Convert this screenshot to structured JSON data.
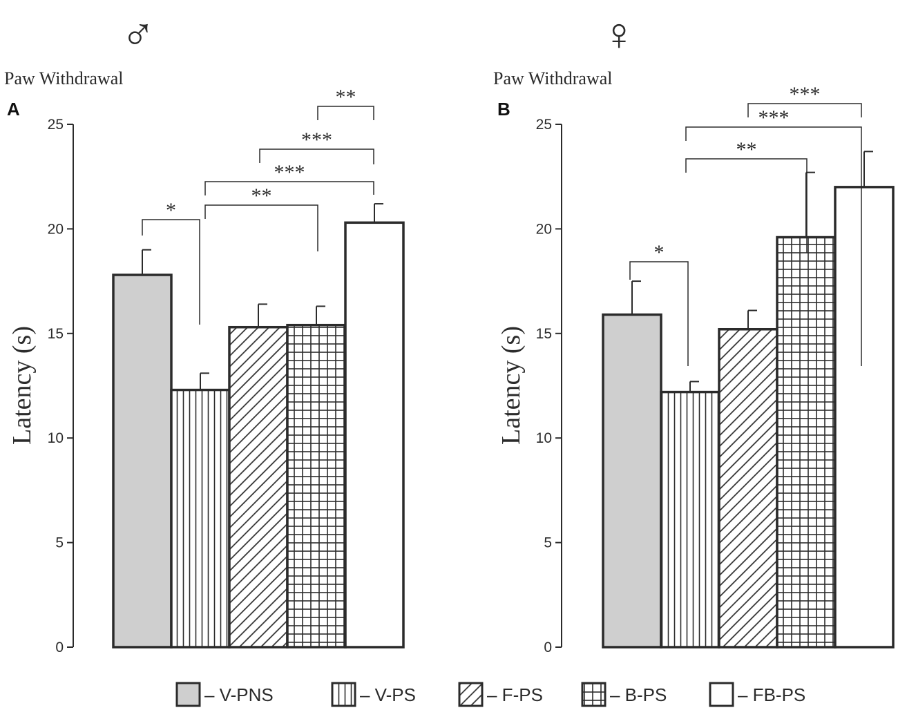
{
  "chart_data": [
    {
      "panel": "A",
      "sex_symbol": "♂",
      "subtitle": "Paw Withdrawal",
      "type": "bar",
      "ylabel": "Latency  (s)",
      "ylim": [
        0,
        25
      ],
      "yticks": [
        "0",
        "5",
        "10",
        "15",
        "20",
        "25"
      ],
      "categories": [
        "V-PNS",
        "V-PS",
        "F-PS",
        "B-PS",
        "FB-PS"
      ],
      "values": [
        17.8,
        12.3,
        15.3,
        15.4,
        20.3
      ],
      "errors": [
        1.2,
        0.8,
        1.1,
        0.9,
        0.9
      ],
      "significance": [
        {
          "from": 0,
          "to": 1,
          "label": "*"
        },
        {
          "from": 1,
          "to": 3,
          "label": "**"
        },
        {
          "from": 1,
          "to": 4,
          "label": "***"
        },
        {
          "from": 2,
          "to": 4,
          "label": "***"
        },
        {
          "from": 3,
          "to": 4,
          "label": "**"
        }
      ]
    },
    {
      "panel": "B",
      "sex_symbol": "♀",
      "subtitle": "Paw Withdrawal",
      "type": "bar",
      "ylabel": "Latency  (s)",
      "ylim": [
        0,
        25
      ],
      "yticks": [
        "0",
        "5",
        "10",
        "15",
        "20",
        "25"
      ],
      "categories": [
        "V-PNS",
        "V-PS",
        "F-PS",
        "B-PS",
        "FB-PS"
      ],
      "values": [
        15.9,
        12.2,
        15.2,
        19.6,
        22.0
      ],
      "errors": [
        1.6,
        0.5,
        0.9,
        3.1,
        1.7
      ],
      "significance": [
        {
          "from": 0,
          "to": 1,
          "label": "*"
        },
        {
          "from": 1,
          "to": 3,
          "label": "**"
        },
        {
          "from": 1,
          "to": 4,
          "label": "***"
        },
        {
          "from": 2,
          "to": 4,
          "label": "***"
        }
      ]
    }
  ],
  "legend": [
    {
      "label": "– V-PNS",
      "pattern": "gray"
    },
    {
      "label": "– V-PS",
      "pattern": "vertical"
    },
    {
      "label": "– F-PS",
      "pattern": "diagonal"
    },
    {
      "label": "– B-PS",
      "pattern": "grid"
    },
    {
      "label": "– FB-PS",
      "pattern": "white"
    }
  ],
  "colors": {
    "stroke": "#2b2b2b",
    "gray_fill": "#cfcfcf",
    "white_fill": "#ffffff"
  }
}
